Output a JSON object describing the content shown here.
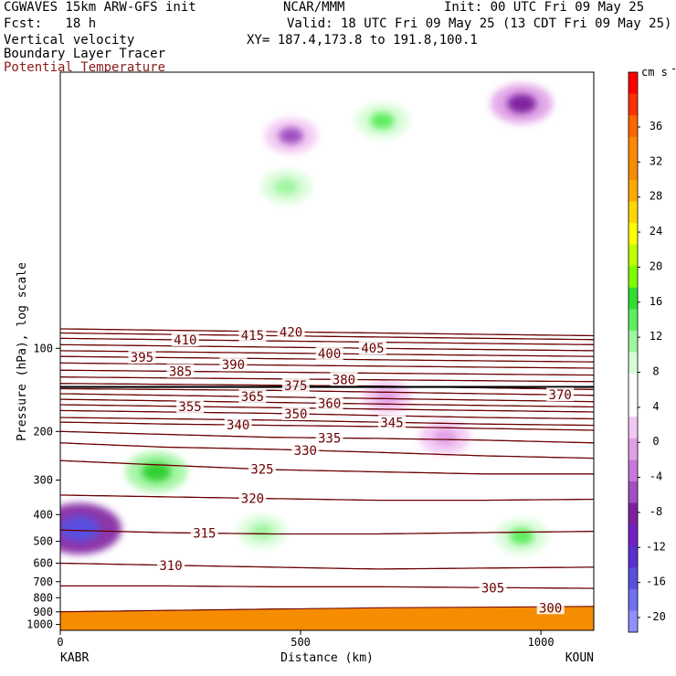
{
  "header": {
    "model": "CGWAVES 15km ARW-GFS init",
    "org": "NCAR/MMM",
    "init": "Init: 00 UTC Fri 09 May 25",
    "fcst": "Fcst:   18 h",
    "valid": "Valid: 18 UTC Fri 09 May 25 (13 CDT Fri 09 May 25)",
    "field1": "Vertical velocity",
    "field2": "Boundary Layer Tracer",
    "field3": "Potential Temperature",
    "xy": "XY= 187.4,173.8 to 191.8,100.1"
  },
  "colors": {
    "theta_contour": "#6b0000",
    "tropopause_line": "#000000",
    "terrain": "#f68c00"
  },
  "chart_data": {
    "type": "contour-cross-section",
    "xlabel": "Distance (km)",
    "ylabel": "Pressure (hPa), log scale",
    "xlim": [
      0,
      1110
    ],
    "ylim": [
      1050,
      10
    ],
    "y_scale": "log",
    "x_ticks": [
      "0",
      "500",
      "1000"
    ],
    "x_tick_values": [
      0,
      500,
      1000
    ],
    "y_ticks": [
      "100",
      "200",
      "300",
      "400",
      "500",
      "600",
      "700",
      "800",
      "900",
      "1000"
    ],
    "y_tick_values": [
      100,
      200,
      300,
      400,
      500,
      600,
      700,
      800,
      900,
      1000
    ],
    "endpoint_left": "KABR",
    "endpoint_right": "KOUN",
    "colorbar": {
      "units": "cm s",
      "unit_exponent": "-1",
      "labels": [
        "36",
        "32",
        "28",
        "24",
        "20",
        "16",
        "12",
        "8",
        "4",
        "0",
        "-4",
        "-8",
        "-12",
        "-16",
        "-20"
      ],
      "colors": [
        "#ff0000",
        "#ff3300",
        "#ff6600",
        "#ff8800",
        "#f68c00",
        "#ffaa00",
        "#ffd700",
        "#ffff00",
        "#c0ff00",
        "#80ff00",
        "#30e030",
        "#60ee60",
        "#a0f5a0",
        "#d8fcd8",
        "#ffffff",
        "#ffffff",
        "#f3c8f3",
        "#e0a0e6",
        "#c878d8",
        "#a050c0",
        "#8020a0",
        "#7020c0",
        "#5a30d0",
        "#5a50e0",
        "#7070f0",
        "#9090ff"
      ]
    },
    "theta_contours": [
      {
        "theta": 300,
        "pressure": [
          900,
          890,
          880,
          875,
          870,
          870
        ],
        "label_at": 1020
      },
      {
        "theta": 305,
        "pressure": [
          725,
          725,
          730,
          730,
          735,
          740
        ],
        "label_at": 900
      },
      {
        "theta": 310,
        "pressure": [
          600,
          610,
          620,
          630,
          625,
          620
        ],
        "label_at": 230
      },
      {
        "theta": 315,
        "pressure": [
          455,
          465,
          470,
          470,
          465,
          460
        ],
        "label_at": 300
      },
      {
        "theta": 320,
        "pressure": [
          340,
          345,
          350,
          355,
          355,
          352
        ],
        "label_at": 400
      },
      {
        "theta": 325,
        "pressure": [
          255,
          265,
          275,
          280,
          285,
          285
        ],
        "label_at": 420
      },
      {
        "theta": 330,
        "pressure": [
          220,
          228,
          232,
          238,
          245,
          250
        ],
        "label_at": 510
      },
      {
        "theta": 335,
        "pressure": [
          200,
          205,
          210,
          212,
          215,
          220
        ],
        "label_at": 560
      },
      {
        "theta": 340,
        "pressure": [
          185,
          188,
          190,
          192,
          195,
          198
        ],
        "label_at": 370
      },
      {
        "theta": 345,
        "pressure": [
          178,
          180,
          182,
          185,
          188,
          190
        ],
        "label_at": 690
      },
      {
        "theta": 350,
        "pressure": [
          168,
          170,
          172,
          175,
          178,
          180
        ],
        "label_at": 490
      },
      {
        "theta": 355,
        "pressure": [
          160,
          162,
          164,
          166,
          168,
          170
        ],
        "label_at": 270
      },
      {
        "theta": 360,
        "pressure": [
          153,
          155,
          157,
          159,
          161,
          163
        ],
        "label_at": 560
      },
      {
        "theta": 365,
        "pressure": [
          146,
          148,
          150,
          152,
          154,
          156
        ],
        "label_at": 400
      },
      {
        "theta": 370,
        "pressure": [
          140,
          141,
          142,
          144,
          146,
          148
        ],
        "label_at": 1040
      },
      {
        "theta": 375,
        "pressure": [
          134,
          135,
          136,
          137,
          139,
          141
        ],
        "label_at": 490
      },
      {
        "theta": 380,
        "pressure": [
          127,
          128,
          129,
          130,
          131,
          132
        ],
        "label_at": 590
      },
      {
        "theta": 385,
        "pressure": [
          120,
          121,
          122,
          123,
          124,
          125
        ],
        "label_at": 250
      },
      {
        "theta": 390,
        "pressure": [
          113,
          114,
          115,
          116,
          117,
          118
        ],
        "label_at": 360
      },
      {
        "theta": 395,
        "pressure": [
          107,
          108,
          109,
          110,
          111,
          112
        ],
        "label_at": 170
      },
      {
        "theta": 400,
        "pressure": [
          102,
          103,
          104,
          105,
          106,
          107
        ],
        "label_at": 560
      },
      {
        "theta": 405,
        "pressure": [
          97,
          98,
          99,
          100,
          101,
          102
        ],
        "label_at": 650
      },
      {
        "theta": 410,
        "pressure": [
          92,
          93,
          94,
          95,
          96,
          97
        ],
        "label_at": 260
      },
      {
        "theta": 415,
        "pressure": [
          88,
          89,
          90,
          91,
          92,
          93
        ],
        "label_at": 400
      },
      {
        "theta": 420,
        "pressure": [
          85,
          86,
          87,
          88,
          89,
          90
        ],
        "label_at": 480
      }
    ],
    "theta_x": [
      0,
      220,
      440,
      660,
      880,
      1110
    ],
    "tropopause": {
      "pressure": 138
    },
    "terrain_pressure": [
      900,
      890,
      880,
      870,
      865,
      860
    ],
    "velocity_features": [
      {
        "x": 480,
        "p": 17,
        "w": -6
      },
      {
        "x": 670,
        "p": 15,
        "w": 6
      },
      {
        "x": 960,
        "p": 13,
        "w": -10
      },
      {
        "x": 470,
        "p": 26,
        "w": 5
      },
      {
        "x": 200,
        "p": 280,
        "w": 10
      },
      {
        "x": 420,
        "p": 460,
        "w": 4
      },
      {
        "x": 800,
        "p": 210,
        "w": -5
      },
      {
        "x": 40,
        "p": 450,
        "w": -20
      },
      {
        "x": 960,
        "p": 480,
        "w": 6
      },
      {
        "x": 680,
        "p": 150,
        "w": -4
      }
    ]
  }
}
